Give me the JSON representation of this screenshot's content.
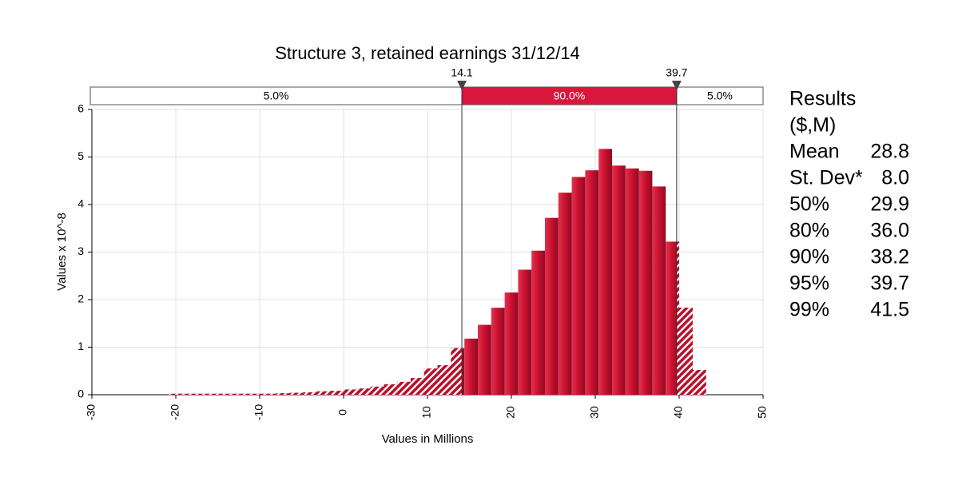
{
  "chart_data": {
    "type": "histogram",
    "title": "Structure 3, retained earnings 31/12/14",
    "xlabel": "Values in Millions",
    "ylabel": "Values x 10^-8",
    "bins": [
      -20.8,
      -19.2,
      -17.6,
      -16,
      -14.4,
      -12.8,
      -11.2,
      -9.6,
      -8,
      -6.4,
      -4.8,
      -3.2,
      -1.6,
      0,
      1.6,
      3.2,
      4.8,
      6.4,
      8,
      9.6,
      11.2,
      12.8,
      14.4,
      16,
      17.6,
      19.2,
      20.8,
      22.4,
      24,
      25.6,
      27.2,
      28.8,
      30.4,
      32,
      33.6,
      35.2,
      36.8,
      38.4,
      40,
      41.6,
      43.2
    ],
    "values": [
      0.02,
      0.02,
      0.02,
      0.02,
      0.02,
      0.02,
      0.02,
      0.02,
      0.03,
      0.04,
      0.05,
      0.07,
      0.08,
      0.11,
      0.13,
      0.17,
      0.22,
      0.27,
      0.35,
      0.55,
      0.62,
      0.98,
      1.18,
      1.47,
      1.83,
      2.15,
      2.63,
      3.03,
      3.72,
      4.25,
      4.58,
      4.72,
      5.17,
      4.82,
      4.76,
      4.71,
      4.38,
      3.22,
      1.83,
      0.52
    ],
    "color": "#c8102e",
    "xlim": [
      -30,
      50
    ],
    "xticks": [
      -30,
      -20,
      -10,
      0,
      10,
      20,
      30,
      40,
      50
    ],
    "ylim": [
      0,
      6
    ],
    "yticks": [
      0,
      1,
      2,
      3,
      4,
      5,
      6
    ],
    "grid": true,
    "delimiters": [
      14.1,
      39.7
    ],
    "regions": [
      {
        "value": 5,
        "label": "5.0%"
      },
      {
        "value": 90,
        "label": "90.0%"
      },
      {
        "value": 5,
        "label": "5.0%"
      }
    ],
    "results": {
      "title": "Results",
      "unit": "($,M)",
      "rows": [
        {
          "label": "Mean",
          "value": "28.8"
        },
        {
          "label": "St. Dev*",
          "value": "8.0"
        },
        {
          "label": "50%",
          "value": "29.9"
        },
        {
          "label": "80%",
          "value": "36.0"
        },
        {
          "label": "90%",
          "value": "38.2"
        },
        {
          "label": "95%",
          "value": "39.7"
        },
        {
          "label": "99%",
          "value": "41.5"
        }
      ]
    }
  }
}
